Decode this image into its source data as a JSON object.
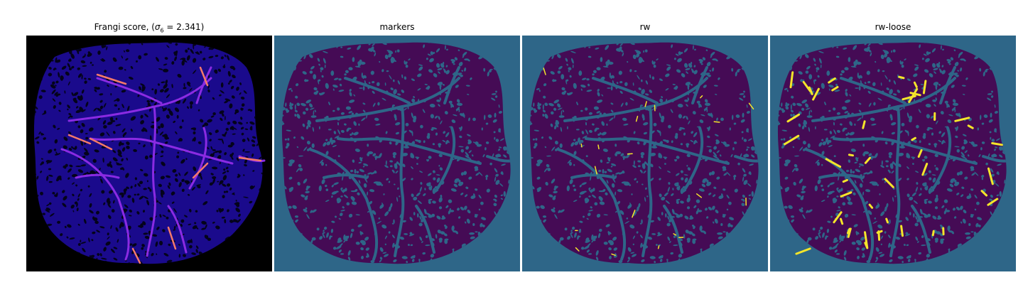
{
  "panels": [
    {
      "id": "frangi",
      "title_prefix": "Frangi score, (",
      "title_sigma": "σ",
      "title_sub": "6",
      "title_suffix": " = 2.341)",
      "bg": "#000000",
      "body": "#1a0a8c",
      "holes": "#04031a",
      "vessel": "#8a2be2",
      "hot": "#f47a6a"
    },
    {
      "id": "markers",
      "title": "markers",
      "bg": "#2e6688",
      "body": "#450b55",
      "holes": "#2e6688"
    },
    {
      "id": "rw",
      "title": "rw",
      "bg": "#2e6688",
      "body": "#450b55",
      "holes": "#2e6688",
      "highlight": "#f5e52a"
    },
    {
      "id": "rw-loose",
      "title": "rw-loose",
      "bg": "#2e6688",
      "body": "#450b55",
      "holes": "#2e6688",
      "highlight": "#f5e52a"
    }
  ]
}
